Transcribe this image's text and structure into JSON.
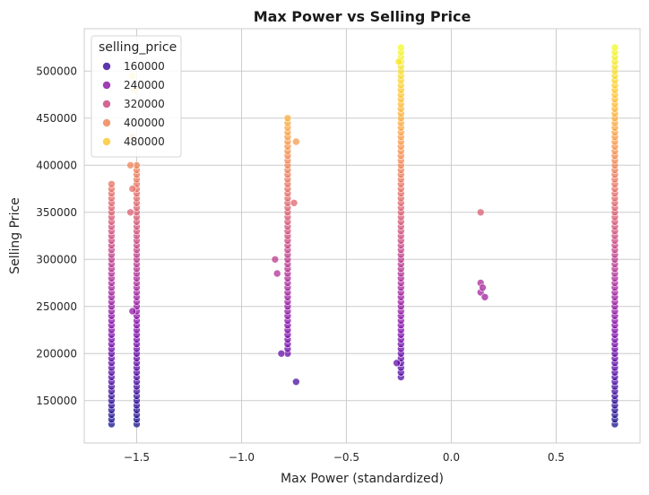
{
  "chart_data": {
    "type": "scatter",
    "title": "Max Power vs Selling Price",
    "xlabel": "Max Power (standardized)",
    "ylabel": "Selling Price",
    "xlim": [
      -1.75,
      0.9
    ],
    "ylim": [
      105000,
      545000
    ],
    "x_ticks": [
      -1.5,
      -1.0,
      -0.5,
      0.0,
      0.5
    ],
    "x_tick_labels": [
      "−1.5",
      "−1.0",
      "−0.5",
      "0.0",
      "0.5"
    ],
    "y_ticks": [
      150000,
      200000,
      250000,
      300000,
      350000,
      400000,
      450000,
      500000
    ],
    "y_tick_labels": [
      "150000",
      "200000",
      "250000",
      "300000",
      "350000",
      "400000",
      "450000",
      "500000"
    ],
    "grid": true,
    "legend": {
      "title": "selling_price",
      "placement": "top-left",
      "entries": [
        {
          "label": "160000",
          "value": 160000
        },
        {
          "label": "240000",
          "value": 240000
        },
        {
          "label": "320000",
          "value": 320000
        },
        {
          "label": "400000",
          "value": 400000
        },
        {
          "label": "480000",
          "value": 480000
        }
      ]
    },
    "hue": {
      "field": "selling_price",
      "colormap": "plasma",
      "range": [
        125000,
        525000
      ]
    },
    "clusters": [
      {
        "x": -1.62,
        "y_min": 125000,
        "y_max": 380000,
        "step": 5000
      },
      {
        "x": -1.5,
        "y_min": 125000,
        "y_max": 400000,
        "step": 5000
      },
      {
        "x": -0.78,
        "y_min": 200000,
        "y_max": 450000,
        "step": 5000
      },
      {
        "x": -0.24,
        "y_min": 175000,
        "y_max": 525000,
        "step": 5000
      },
      {
        "x": 0.78,
        "y_min": 125000,
        "y_max": 525000,
        "step": 5000
      }
    ],
    "points": [
      {
        "x": -1.52,
        "y": 245000
      },
      {
        "x": -1.53,
        "y": 400000
      },
      {
        "x": -1.52,
        "y": 375000
      },
      {
        "x": -1.53,
        "y": 350000
      },
      {
        "x": -1.52,
        "y": 430000
      },
      {
        "x": -1.51,
        "y": 480000
      },
      {
        "x": -1.52,
        "y": 495000
      },
      {
        "x": -0.83,
        "y": 285000
      },
      {
        "x": -0.84,
        "y": 300000
      },
      {
        "x": -0.81,
        "y": 200000
      },
      {
        "x": -0.74,
        "y": 170000
      },
      {
        "x": -0.74,
        "y": 425000
      },
      {
        "x": -0.75,
        "y": 360000
      },
      {
        "x": -0.26,
        "y": 190000
      },
      {
        "x": -0.25,
        "y": 510000
      },
      {
        "x": 0.14,
        "y": 350000
      },
      {
        "x": 0.14,
        "y": 275000
      },
      {
        "x": 0.14,
        "y": 265000
      },
      {
        "x": 0.15,
        "y": 270000
      },
      {
        "x": 0.16,
        "y": 260000
      }
    ]
  }
}
